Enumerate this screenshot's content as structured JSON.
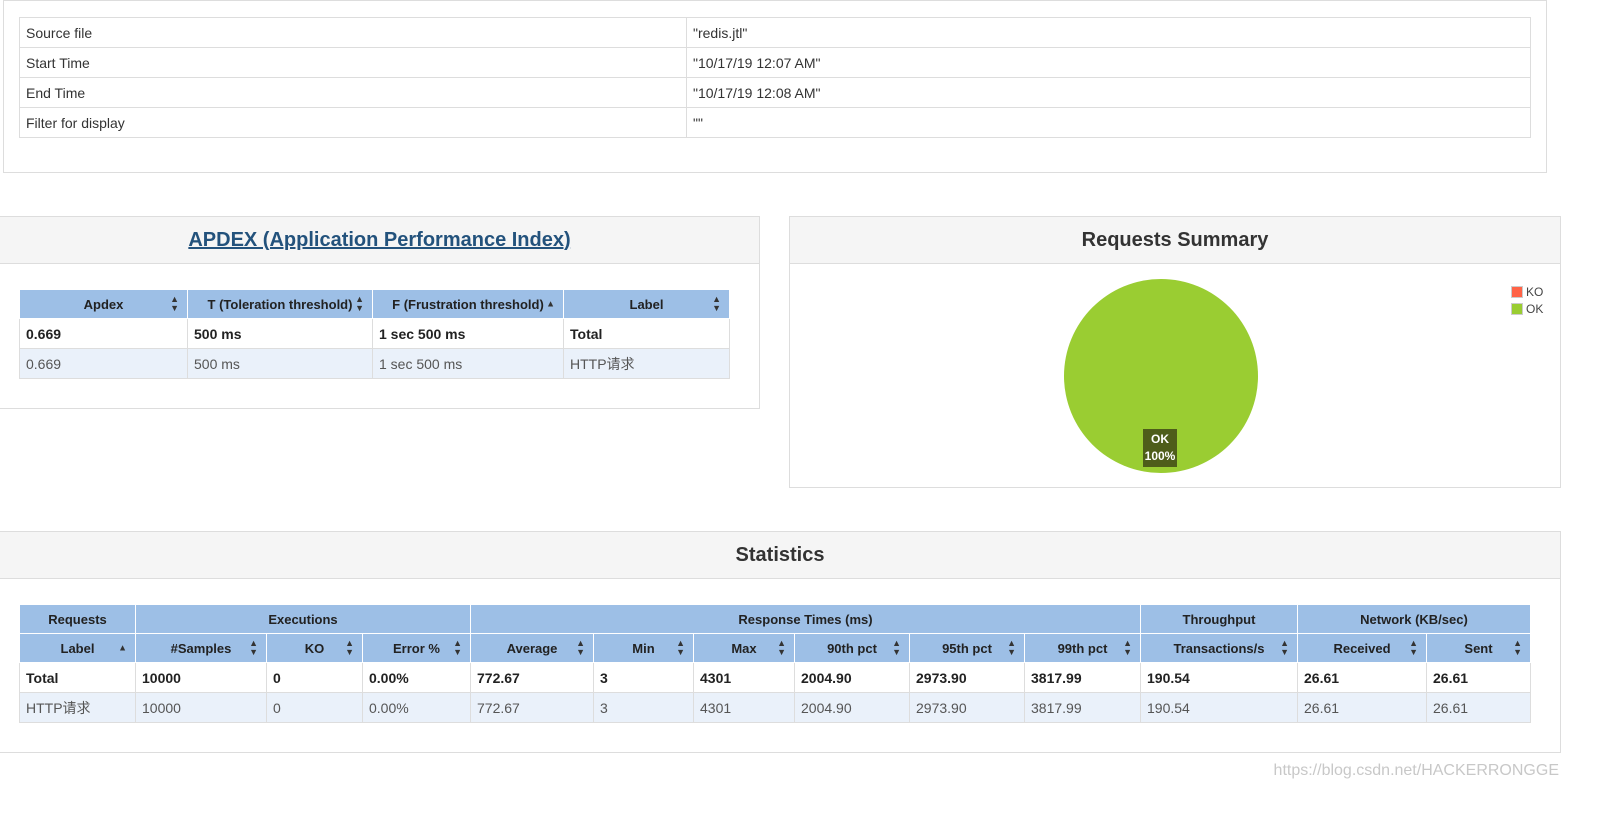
{
  "info": {
    "rows": [
      {
        "label": "Source file",
        "value": "\"redis.jtl\""
      },
      {
        "label": "Start Time",
        "value": "\"10/17/19 12:07 AM\""
      },
      {
        "label": "End Time",
        "value": "\"10/17/19 12:08 AM\""
      },
      {
        "label": "Filter for display",
        "value": "\"\""
      }
    ]
  },
  "apdex": {
    "title": "APDEX (Application Performance Index)",
    "headers": [
      "Apdex",
      "T (Toleration threshold)",
      "F (Frustration threshold)",
      "Label"
    ],
    "rows": [
      [
        "0.669",
        "500 ms",
        "1 sec 500 ms",
        "Total"
      ],
      [
        "0.669",
        "500 ms",
        "1 sec 500 ms",
        "HTTP请求"
      ]
    ]
  },
  "summary": {
    "title": "Requests Summary",
    "legend": [
      {
        "label": "KO",
        "color": "#ff6347"
      },
      {
        "label": "OK",
        "color": "#9acd32"
      }
    ],
    "pie_label": "OK",
    "pie_percent": "100%"
  },
  "chart_data": {
    "type": "pie",
    "categories": [
      "KO",
      "OK"
    ],
    "values": [
      0,
      100
    ],
    "colors": [
      "#ff6347",
      "#9acd32"
    ],
    "legend": "top-right"
  },
  "statistics": {
    "title": "Statistics",
    "groups": [
      {
        "label": "Requests",
        "span": 1
      },
      {
        "label": "Executions",
        "span": 3
      },
      {
        "label": "Response Times (ms)",
        "span": 6
      },
      {
        "label": "Throughput",
        "span": 1
      },
      {
        "label": "Network (KB/sec)",
        "span": 2
      }
    ],
    "headers": [
      "Label",
      "#Samples",
      "KO",
      "Error %",
      "Average",
      "Min",
      "Max",
      "90th pct",
      "95th pct",
      "99th pct",
      "Transactions/s",
      "Received",
      "Sent"
    ],
    "rows": [
      [
        "Total",
        "10000",
        "0",
        "0.00%",
        "772.67",
        "3",
        "4301",
        "2004.90",
        "2973.90",
        "3817.99",
        "190.54",
        "26.61",
        "26.61"
      ],
      [
        "HTTP请求",
        "10000",
        "0",
        "0.00%",
        "772.67",
        "3",
        "4301",
        "2004.90",
        "2973.90",
        "3817.99",
        "190.54",
        "26.61",
        "26.61"
      ]
    ]
  },
  "watermark": "https://blog.csdn.net/HACKERRONGGE"
}
